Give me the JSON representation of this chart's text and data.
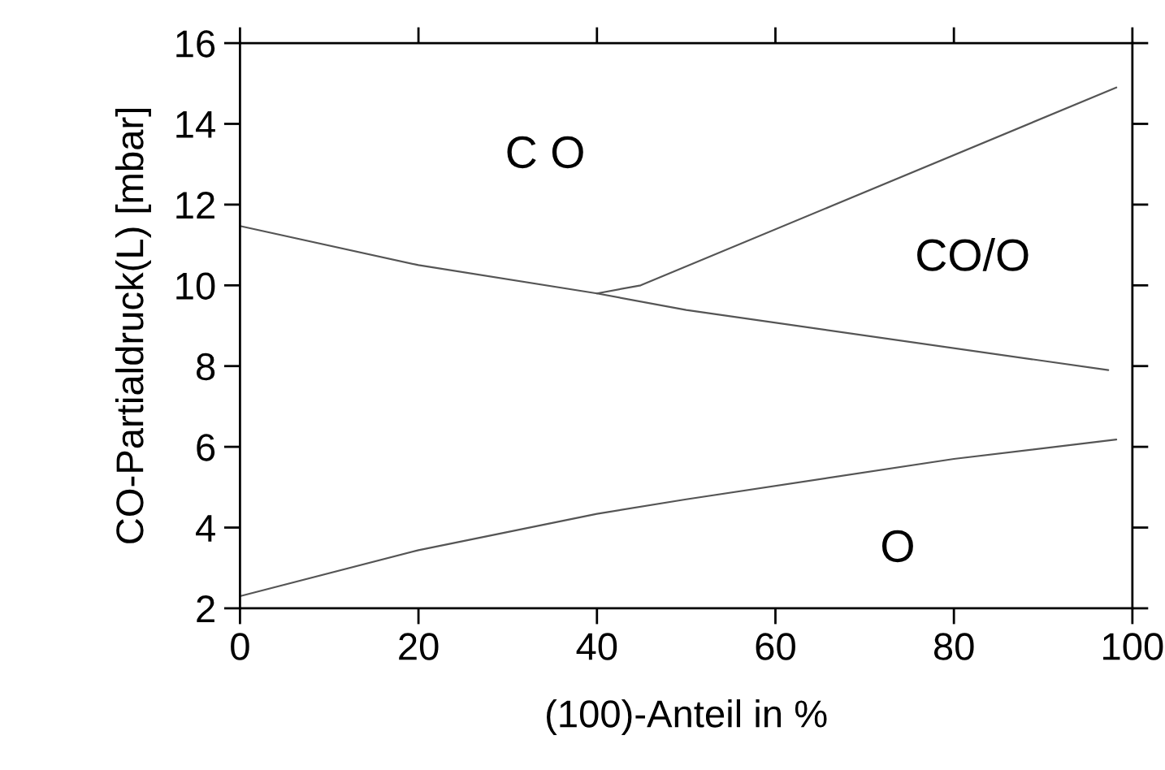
{
  "chart_data": {
    "type": "line",
    "xlabel": "(100)-Anteil in %",
    "ylabel": "CO-Partialdruck(L) [mbar]",
    "xlim": [
      0,
      100
    ],
    "ylim": [
      2,
      16
    ],
    "xticks": [
      0,
      20,
      40,
      60,
      80,
      100
    ],
    "yticks": [
      2,
      4,
      6,
      8,
      10,
      12,
      14,
      16
    ],
    "marker": "none",
    "line_style": "solid",
    "series": [
      {
        "color": "#555555",
        "x": [
          0,
          20,
          40,
          50,
          97.3
        ],
        "values": [
          11.47,
          10.5,
          9.8,
          9.39,
          7.9
        ]
      },
      {
        "color": "#555555",
        "x": [
          40,
          44.9,
          98.2
        ],
        "values": [
          9.8,
          10.0,
          14.9
        ]
      },
      {
        "color": "#555555",
        "x": [
          0,
          20,
          40,
          50,
          80,
          98.2
        ],
        "values": [
          2.3,
          3.44,
          4.34,
          4.7,
          5.7,
          6.18
        ]
      }
    ],
    "annotations": [
      "C O",
      "CO/O",
      "O"
    ]
  }
}
